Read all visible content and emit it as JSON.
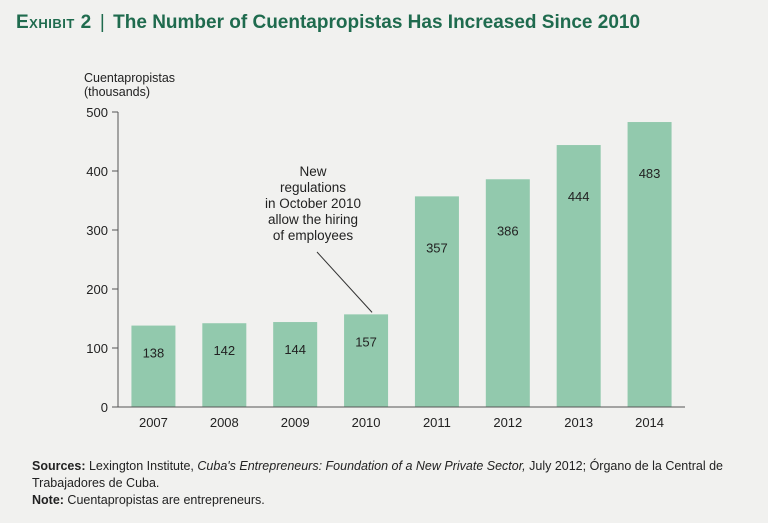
{
  "header": {
    "exhibit_label": "Exhibit 2",
    "divider": "|",
    "title": "The Number of Cuentapropistas Has Increased Since 2010",
    "color": "#1f6b4e"
  },
  "chart_data": {
    "type": "bar",
    "title": "The Number of Cuentapropistas Has Increased Since 2010",
    "ylabel_line1": "Cuentapropistas",
    "ylabel_line2": "(thousands)",
    "xlabel": "",
    "categories": [
      "2007",
      "2008",
      "2009",
      "2010",
      "2011",
      "2012",
      "2013",
      "2014"
    ],
    "values": [
      138,
      142,
      144,
      157,
      357,
      386,
      444,
      483
    ],
    "ylim": [
      0,
      500
    ],
    "yticks": [
      0,
      100,
      200,
      300,
      400,
      500
    ],
    "grid": false,
    "bar_color": "#92c9ad",
    "annotation": {
      "lines": [
        "New",
        "regulations",
        "in October 2010",
        "allow the hiring",
        "of employees"
      ],
      "target_category": "2010"
    }
  },
  "footer": {
    "sources_label": "Sources:",
    "sources_text_1": " Lexington Institute, ",
    "sources_italic": "Cuba's Entrepreneurs: Foundation of a New Private Sector,",
    "sources_text_2": " July 2012; Órgano de la Central de Trabajadores de Cuba.",
    "note_label": "Note:",
    "note_text": " Cuentapropistas are entrepreneurs."
  }
}
